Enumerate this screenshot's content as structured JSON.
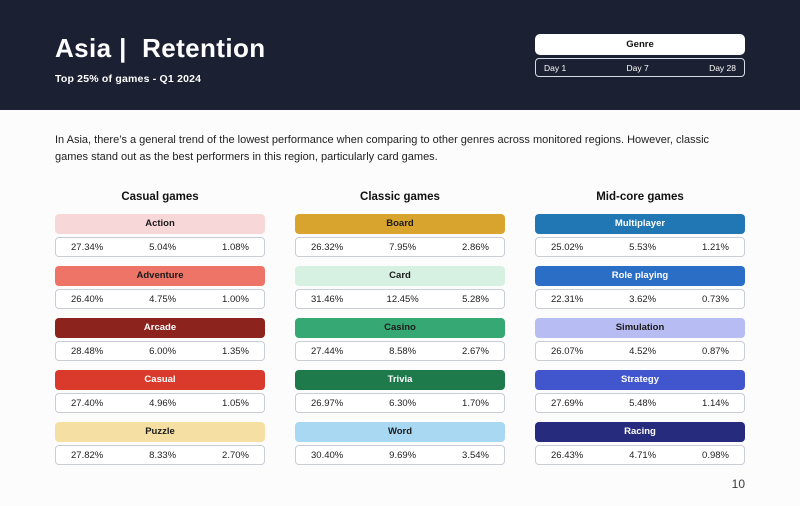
{
  "header": {
    "title": "Asia |  Retention",
    "subtitle": "Top 25% of games - Q1 2024",
    "legend": {
      "title": "Genre",
      "days": [
        "Day 1",
        "Day 7",
        "Day 28"
      ]
    }
  },
  "intro": "In Asia, there’s a general trend of the lowest performance when comparing to other genres across monitored regions. However, classic games stand out as the best performers in this region, particularly card games.",
  "page_number": "10",
  "colors": {
    "header_bg": "#1b2032",
    "page_bg": "#fcfcfc",
    "value_border": "#c9cdd5"
  },
  "columns": [
    {
      "title": "Casual games",
      "cards": [
        {
          "genre": "Action",
          "bg": "#f8d7d8",
          "fg": "#1a1a1a",
          "values": [
            "27.34%",
            "5.04%",
            "1.08%"
          ]
        },
        {
          "genre": "Adventure",
          "bg": "#ed7466",
          "fg": "#1a1a1a",
          "values": [
            "26.40%",
            "4.75%",
            "1.00%"
          ]
        },
        {
          "genre": "Arcade",
          "bg": "#8c231d",
          "fg": "#ffffff",
          "values": [
            "28.48%",
            "6.00%",
            "1.35%"
          ]
        },
        {
          "genre": "Casual",
          "bg": "#d93a2b",
          "fg": "#ffffff",
          "values": [
            "27.40%",
            "4.96%",
            "1.05%"
          ]
        },
        {
          "genre": "Puzzle",
          "bg": "#f5dfa2",
          "fg": "#1a1a1a",
          "values": [
            "27.82%",
            "8.33%",
            "2.70%"
          ]
        }
      ]
    },
    {
      "title": "Classic games",
      "cards": [
        {
          "genre": "Board",
          "bg": "#d9a42e",
          "fg": "#1a1a1a",
          "values": [
            "26.32%",
            "7.95%",
            "2.86%"
          ]
        },
        {
          "genre": "Card",
          "bg": "#d6f0e2",
          "fg": "#1a1a1a",
          "values": [
            "31.46%",
            "12.45%",
            "5.28%"
          ]
        },
        {
          "genre": "Casino",
          "bg": "#36a873",
          "fg": "#1a1a1a",
          "values": [
            "27.44%",
            "8.58%",
            "2.67%"
          ]
        },
        {
          "genre": "Trivia",
          "bg": "#1e7a4b",
          "fg": "#ffffff",
          "values": [
            "26.97%",
            "6.30%",
            "1.70%"
          ]
        },
        {
          "genre": "Word",
          "bg": "#a9d9f2",
          "fg": "#1a1a1a",
          "values": [
            "30.40%",
            "9.69%",
            "3.54%"
          ]
        }
      ]
    },
    {
      "title": "Mid-core games",
      "cards": [
        {
          "genre": "Multiplayer",
          "bg": "#2077b4",
          "fg": "#ffffff",
          "values": [
            "25.02%",
            "5.53%",
            "1.21%"
          ]
        },
        {
          "genre": "Role playing",
          "bg": "#2b6ec5",
          "fg": "#ffffff",
          "values": [
            "22.31%",
            "3.62%",
            "0.73%"
          ]
        },
        {
          "genre": "Simulation",
          "bg": "#b7bcf2",
          "fg": "#1a1a1a",
          "values": [
            "26.07%",
            "4.52%",
            "0.87%"
          ]
        },
        {
          "genre": "Strategy",
          "bg": "#4156cc",
          "fg": "#ffffff",
          "values": [
            "27.69%",
            "5.48%",
            "1.14%"
          ]
        },
        {
          "genre": "Racing",
          "bg": "#262b7e",
          "fg": "#ffffff",
          "values": [
            "26.43%",
            "4.71%",
            "0.98%"
          ]
        }
      ]
    }
  ]
}
